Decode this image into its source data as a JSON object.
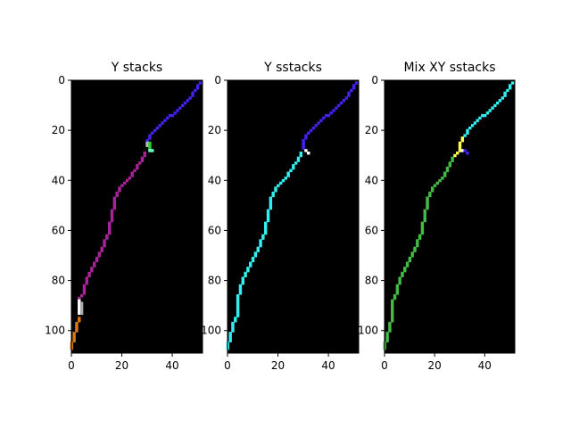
{
  "chart_data": [
    {
      "type": "heatmap",
      "title": "Y stacks",
      "xlim": [
        0,
        52
      ],
      "ylim": [
        109,
        0
      ],
      "xticks": [
        0,
        20,
        40
      ],
      "yticks": [
        0,
        20,
        40,
        60,
        80,
        100
      ],
      "background": "#000000",
      "traces": [
        {
          "color": "#4422ee",
          "points": [
            [
              51,
              1
            ],
            [
              49,
              4
            ],
            [
              46,
              8
            ],
            [
              42,
              12
            ],
            [
              38,
              15
            ],
            [
              35,
              18
            ],
            [
              33,
              20
            ],
            [
              31,
              22
            ],
            [
              30,
              24
            ]
          ]
        },
        {
          "color": "#bbbbbb",
          "points": [
            [
              30,
              25
            ],
            [
              30,
              26
            ]
          ]
        },
        {
          "color": "#33cc33",
          "points": [
            [
              31,
              25
            ],
            [
              31,
              27
            ]
          ]
        },
        {
          "color": "#66ffcc",
          "points": [
            [
              31,
              28
            ],
            [
              32,
              28
            ]
          ]
        },
        {
          "color": "#aa2299",
          "points": [
            [
              29,
              29
            ],
            [
              28,
              31
            ],
            [
              27,
              33
            ],
            [
              25,
              36
            ],
            [
              23,
              39
            ],
            [
              21,
              41
            ],
            [
              19,
              43
            ],
            [
              18,
              45
            ],
            [
              17,
              47
            ],
            [
              17,
              50
            ],
            [
              16,
              52
            ],
            [
              16,
              55
            ],
            [
              15,
              58
            ],
            [
              15,
              60
            ],
            [
              14,
              62
            ],
            [
              13,
              65
            ],
            [
              12,
              67
            ],
            [
              11,
              69
            ],
            [
              10,
              71
            ],
            [
              9,
              73
            ],
            [
              8,
              75
            ],
            [
              7,
              77
            ],
            [
              6,
              80
            ],
            [
              5,
              82
            ],
            [
              5,
              84
            ],
            [
              4,
              86
            ],
            [
              3,
              87
            ]
          ]
        },
        {
          "color": "#ffffff",
          "points": [
            [
              3,
              88
            ],
            [
              3,
              90
            ],
            [
              3,
              92
            ],
            [
              3,
              93
            ]
          ]
        },
        {
          "color": "#aaaaaa",
          "points": [
            [
              4,
              89
            ],
            [
              4,
              93
            ]
          ]
        },
        {
          "color": "#dd7711",
          "points": [
            [
              3,
              95
            ],
            [
              2,
              97
            ],
            [
              2,
              99
            ],
            [
              1,
              101
            ],
            [
              1,
              103
            ],
            [
              0,
              105
            ],
            [
              0,
              107
            ]
          ]
        }
      ]
    },
    {
      "type": "heatmap",
      "title": "Y sstacks",
      "xlim": [
        0,
        52
      ],
      "ylim": [
        109,
        0
      ],
      "xticks": [
        0,
        20,
        40
      ],
      "yticks": [
        0,
        20,
        40,
        60,
        80,
        100
      ],
      "background": "#000000",
      "traces": [
        {
          "color": "#4422ee",
          "points": [
            [
              51,
              1
            ],
            [
              49,
              4
            ],
            [
              46,
              8
            ],
            [
              42,
              12
            ],
            [
              38,
              15
            ],
            [
              35,
              18
            ],
            [
              33,
              20
            ],
            [
              31,
              22
            ],
            [
              30,
              24
            ],
            [
              30,
              26
            ],
            [
              30,
              27
            ]
          ]
        },
        {
          "color": "#ffffff",
          "points": [
            [
              31,
              28
            ],
            [
              32,
              29
            ]
          ]
        },
        {
          "color": "#33eeee",
          "points": [
            [
              29,
              29
            ],
            [
              28,
              31
            ],
            [
              27,
              33
            ],
            [
              25,
              36
            ],
            [
              23,
              39
            ],
            [
              21,
              41
            ],
            [
              19,
              43
            ],
            [
              18,
              45
            ],
            [
              17,
              47
            ],
            [
              17,
              50
            ],
            [
              16,
              52
            ],
            [
              16,
              55
            ],
            [
              15,
              58
            ],
            [
              15,
              60
            ],
            [
              14,
              62
            ],
            [
              13,
              65
            ],
            [
              12,
              67
            ],
            [
              11,
              69
            ],
            [
              10,
              71
            ],
            [
              9,
              73
            ],
            [
              8,
              75
            ],
            [
              7,
              77
            ],
            [
              6,
              80
            ],
            [
              5,
              82
            ],
            [
              5,
              84
            ],
            [
              4,
              86
            ],
            [
              4,
              88
            ],
            [
              4,
              90
            ],
            [
              4,
              92
            ],
            [
              4,
              94
            ],
            [
              3,
              95
            ],
            [
              2,
              97
            ],
            [
              2,
              99
            ],
            [
              1,
              101
            ],
            [
              1,
              103
            ],
            [
              0,
              105
            ],
            [
              0,
              107
            ]
          ]
        }
      ]
    },
    {
      "type": "heatmap",
      "title": "Mix XY sstacks",
      "xlim": [
        0,
        52
      ],
      "ylim": [
        109,
        0
      ],
      "xticks": [
        0,
        20,
        40
      ],
      "yticks": [
        0,
        20,
        40,
        60,
        80,
        100
      ],
      "background": "#000000",
      "traces": [
        {
          "color": "#33eeee",
          "points": [
            [
              51,
              1
            ],
            [
              49,
              4
            ],
            [
              46,
              8
            ],
            [
              42,
              12
            ],
            [
              38,
              15
            ],
            [
              35,
              18
            ],
            [
              33,
              20
            ],
            [
              32,
              22
            ]
          ]
        },
        {
          "color": "#ffff55",
          "points": [
            [
              31,
              23
            ],
            [
              30,
              25
            ],
            [
              30,
              27
            ],
            [
              29,
              29
            ],
            [
              28,
              30
            ]
          ]
        },
        {
          "color": "#ffffff",
          "points": [
            [
              31,
              28
            ]
          ]
        },
        {
          "color": "#4422ee",
          "points": [
            [
              32,
              28
            ],
            [
              33,
              29
            ]
          ]
        },
        {
          "color": "#44bb44",
          "points": [
            [
              27,
              31
            ],
            [
              26,
              33
            ],
            [
              25,
              36
            ],
            [
              23,
              39
            ],
            [
              21,
              41
            ],
            [
              19,
              43
            ],
            [
              18,
              45
            ],
            [
              17,
              47
            ],
            [
              17,
              50
            ],
            [
              16,
              52
            ],
            [
              16,
              55
            ],
            [
              15,
              58
            ],
            [
              15,
              60
            ],
            [
              14,
              62
            ],
            [
              13,
              65
            ],
            [
              12,
              67
            ],
            [
              11,
              69
            ],
            [
              10,
              71
            ],
            [
              9,
              73
            ],
            [
              8,
              75
            ],
            [
              7,
              77
            ],
            [
              6,
              80
            ],
            [
              5,
              82
            ],
            [
              5,
              84
            ],
            [
              4,
              86
            ],
            [
              3,
              88
            ],
            [
              3,
              90
            ],
            [
              3,
              92
            ],
            [
              3,
              94
            ],
            [
              3,
              95
            ],
            [
              2,
              97
            ],
            [
              2,
              99
            ],
            [
              1,
              101
            ],
            [
              1,
              103
            ],
            [
              0,
              105
            ],
            [
              0,
              107
            ]
          ]
        }
      ]
    }
  ]
}
